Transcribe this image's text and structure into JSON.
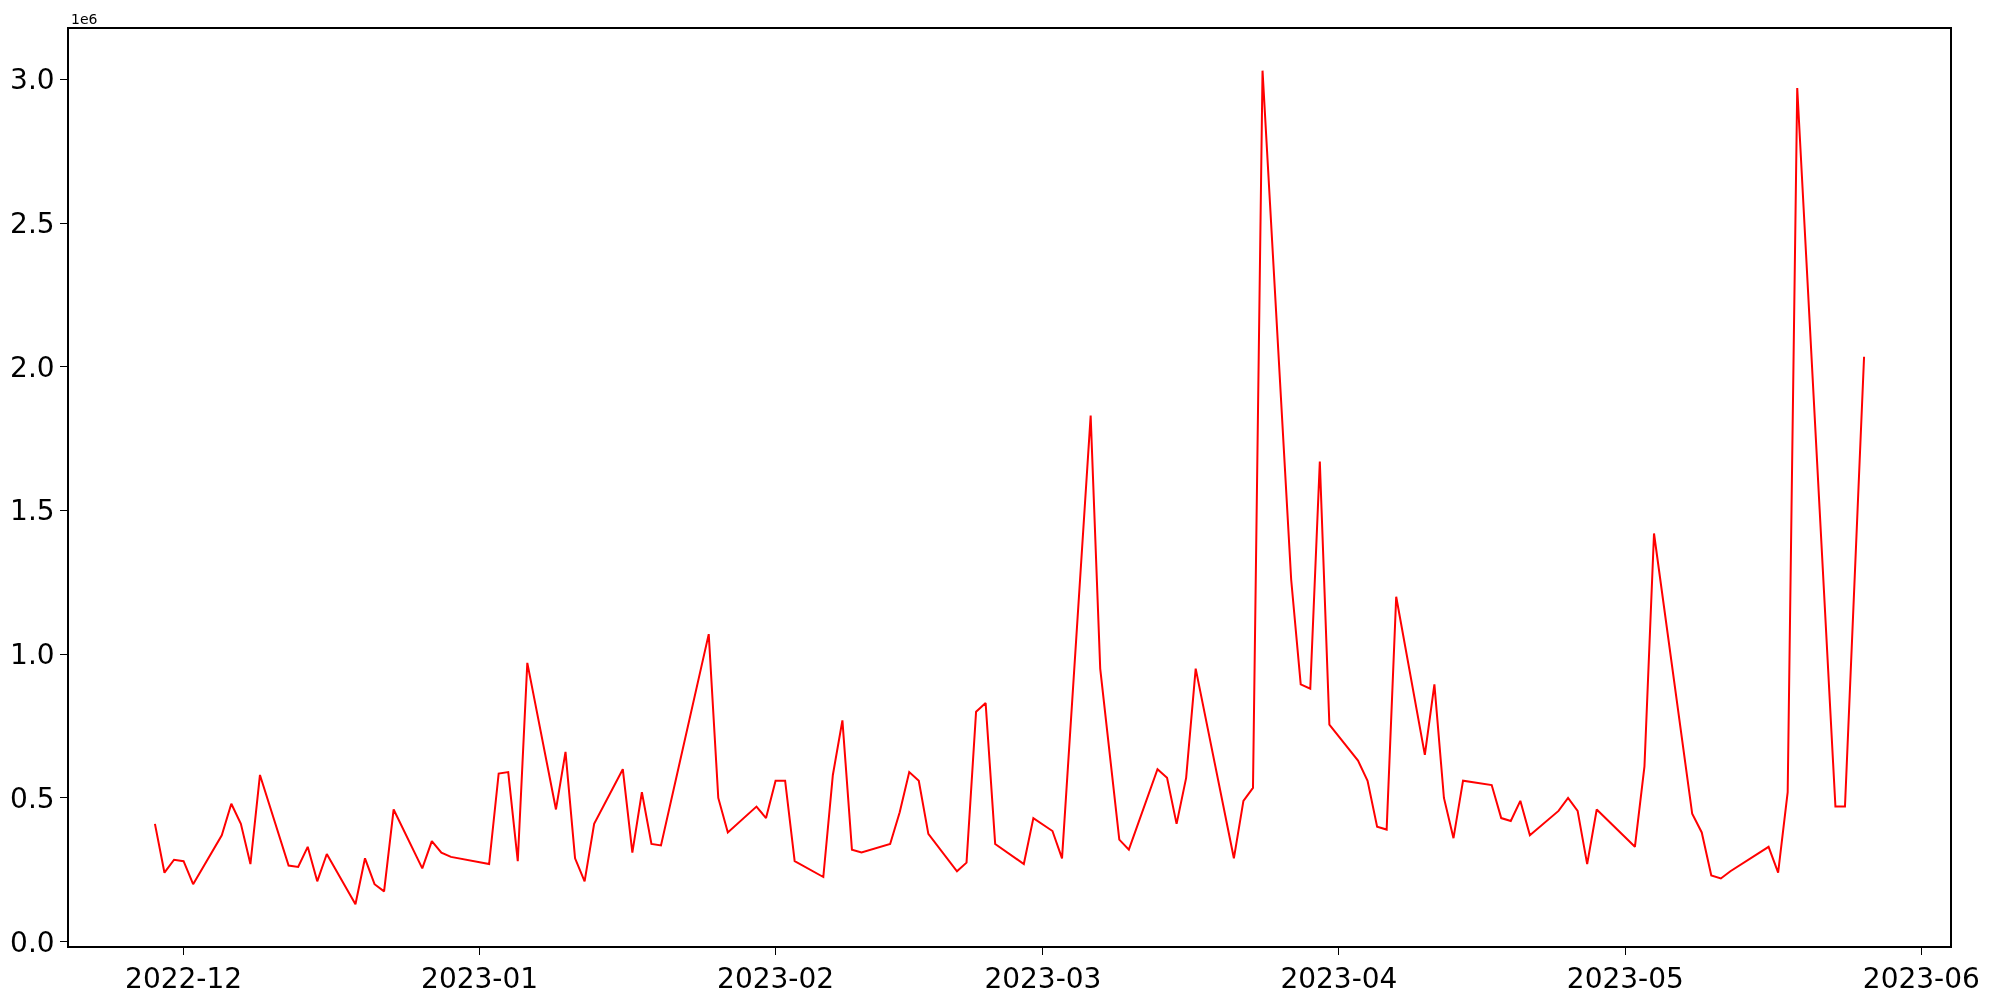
{
  "chart_data": {
    "type": "line",
    "annotations": [
      "1e6"
    ],
    "x": [
      "2022-11-28",
      "2022-11-29",
      "2022-11-30",
      "2022-12-01",
      "2022-12-02",
      "2022-12-05",
      "2022-12-06",
      "2022-12-07",
      "2022-12-08",
      "2022-12-09",
      "2022-12-12",
      "2022-12-13",
      "2022-12-14",
      "2022-12-15",
      "2022-12-16",
      "2022-12-19",
      "2022-12-20",
      "2022-12-21",
      "2022-12-22",
      "2022-12-23",
      "2022-12-26",
      "2022-12-27",
      "2022-12-28",
      "2022-12-29",
      "2023-01-02",
      "2023-01-03",
      "2023-01-04",
      "2023-01-05",
      "2023-01-06",
      "2023-01-09",
      "2023-01-10",
      "2023-01-11",
      "2023-01-12",
      "2023-01-13",
      "2023-01-16",
      "2023-01-17",
      "2023-01-18",
      "2023-01-19",
      "2023-01-20",
      "2023-01-25",
      "2023-01-26",
      "2023-01-27",
      "2023-01-30",
      "2023-01-31",
      "2023-02-01",
      "2023-02-02",
      "2023-02-03",
      "2023-02-06",
      "2023-02-07",
      "2023-02-08",
      "2023-02-09",
      "2023-02-10",
      "2023-02-13",
      "2023-02-14",
      "2023-02-15",
      "2023-02-16",
      "2023-02-17",
      "2023-02-20",
      "2023-02-21",
      "2023-02-22",
      "2023-02-23",
      "2023-02-24",
      "2023-02-27",
      "2023-02-28",
      "2023-03-02",
      "2023-03-03",
      "2023-03-06",
      "2023-03-07",
      "2023-03-09",
      "2023-03-10",
      "2023-03-13",
      "2023-03-14",
      "2023-03-15",
      "2023-03-16",
      "2023-03-17",
      "2023-03-21",
      "2023-03-22",
      "2023-03-23",
      "2023-03-24",
      "2023-03-27",
      "2023-03-28",
      "2023-03-29",
      "2023-03-30",
      "2023-03-31",
      "2023-04-03",
      "2023-04-04",
      "2023-04-05",
      "2023-04-06",
      "2023-04-07",
      "2023-04-10",
      "2023-04-11",
      "2023-04-12",
      "2023-04-13",
      "2023-04-14",
      "2023-04-17",
      "2023-04-18",
      "2023-04-19",
      "2023-04-20",
      "2023-04-21",
      "2023-04-24",
      "2023-04-25",
      "2023-04-26",
      "2023-04-27",
      "2023-04-28",
      "2023-05-02",
      "2023-05-03",
      "2023-05-04",
      "2023-05-08",
      "2023-05-09",
      "2023-05-10",
      "2023-05-11",
      "2023-05-12",
      "2023-05-16",
      "2023-05-17",
      "2023-05-18",
      "2023-05-19",
      "2023-05-23",
      "2023-05-24",
      "2023-05-26"
    ],
    "series": [
      {
        "color": "#ff0000",
        "values": [
          0.41,
          0.24,
          0.285,
          0.28,
          0.2,
          0.37,
          0.48,
          0.41,
          0.27,
          0.58,
          0.265,
          0.26,
          0.33,
          0.21,
          0.305,
          0.13,
          0.29,
          0.2,
          0.175,
          0.46,
          0.255,
          0.35,
          0.31,
          0.295,
          0.27,
          0.585,
          0.59,
          0.28,
          0.97,
          0.46,
          0.66,
          0.29,
          0.21,
          0.41,
          0.6,
          0.31,
          0.52,
          0.34,
          0.335,
          1.07,
          0.5,
          0.38,
          0.47,
          0.43,
          0.56,
          0.56,
          0.28,
          0.225,
          0.58,
          0.77,
          0.32,
          0.31,
          0.34,
          0.45,
          0.59,
          0.56,
          0.375,
          0.245,
          0.275,
          0.8,
          0.83,
          0.34,
          0.27,
          0.43,
          0.385,
          0.29,
          1.83,
          0.95,
          0.355,
          0.32,
          0.6,
          0.57,
          0.41,
          0.57,
          0.95,
          0.29,
          0.49,
          0.535,
          3.03,
          1.26,
          0.895,
          0.88,
          1.67,
          0.755,
          0.63,
          0.56,
          0.4,
          0.39,
          1.2,
          0.65,
          0.895,
          0.5,
          0.36,
          0.56,
          0.545,
          0.43,
          0.42,
          0.49,
          0.37,
          0.455,
          0.5,
          0.455,
          0.27,
          0.46,
          0.33,
          0.61,
          1.42,
          0.445,
          0.38,
          0.23,
          0.22,
          0.245,
          0.33,
          0.24,
          0.52,
          2.97,
          0.47,
          0.47,
          2.035
        ]
      }
    ],
    "xlim": [
      "2022-11-19",
      "2023-06-04"
    ],
    "xticks": [
      {
        "value": "2022-12-01",
        "label": "2022-12"
      },
      {
        "value": "2023-01-01",
        "label": "2023-01"
      },
      {
        "value": "2023-02-01",
        "label": "2023-02"
      },
      {
        "value": "2023-03-01",
        "label": "2023-03"
      },
      {
        "value": "2023-04-01",
        "label": "2023-04"
      },
      {
        "value": "2023-05-01",
        "label": "2023-05"
      },
      {
        "value": "2023-06-01",
        "label": "2023-06"
      }
    ],
    "ylim": [
      -0.015,
      3.175
    ],
    "yticks": [
      {
        "value": 0,
        "label": "0.0"
      },
      {
        "value": 0.5,
        "label": "0.5"
      },
      {
        "value": 1,
        "label": "1.0"
      },
      {
        "value": 1.5,
        "label": "1.5"
      },
      {
        "value": 2,
        "label": "2.0"
      },
      {
        "value": 2.5,
        "label": "2.5"
      },
      {
        "value": 3,
        "label": "3.0"
      }
    ],
    "grid": false,
    "marker": "none",
    "line_style": "solid"
  }
}
